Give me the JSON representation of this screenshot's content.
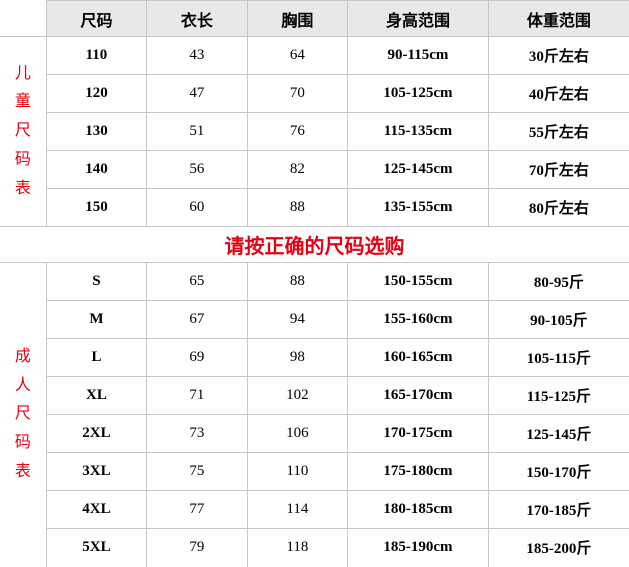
{
  "colors": {
    "accent_red": "#e60012",
    "header_bg": "#e8e8e8",
    "border": "#c7c7c7",
    "text": "#000000",
    "background": "#ffffff"
  },
  "columns": [
    "尺码",
    "衣长",
    "胸围",
    "身高范围",
    "体重范围"
  ],
  "kids_label": "儿童尺码表",
  "adult_label": "成人尺码表",
  "notice": "请按正确的尺码选购",
  "kids_rows": [
    {
      "size": "110",
      "length": "43",
      "bust": "64",
      "height": "90-115cm",
      "weight": "30斤左右"
    },
    {
      "size": "120",
      "length": "47",
      "bust": "70",
      "height": "105-125cm",
      "weight": "40斤左右"
    },
    {
      "size": "130",
      "length": "51",
      "bust": "76",
      "height": "115-135cm",
      "weight": "55斤左右"
    },
    {
      "size": "140",
      "length": "56",
      "bust": "82",
      "height": "125-145cm",
      "weight": "70斤左右"
    },
    {
      "size": "150",
      "length": "60",
      "bust": "88",
      "height": "135-155cm",
      "weight": "80斤左右"
    }
  ],
  "adult_rows": [
    {
      "size": "S",
      "length": "65",
      "bust": "88",
      "height": "150-155cm",
      "weight": "80-95斤"
    },
    {
      "size": "M",
      "length": "67",
      "bust": "94",
      "height": "155-160cm",
      "weight": "90-105斤"
    },
    {
      "size": "L",
      "length": "69",
      "bust": "98",
      "height": "160-165cm",
      "weight": "105-115斤"
    },
    {
      "size": "XL",
      "length": "71",
      "bust": "102",
      "height": "165-170cm",
      "weight": "115-125斤"
    },
    {
      "size": "2XL",
      "length": "73",
      "bust": "106",
      "height": "170-175cm",
      "weight": "125-145斤"
    },
    {
      "size": "3XL",
      "length": "75",
      "bust": "110",
      "height": "175-180cm",
      "weight": "150-170斤"
    },
    {
      "size": "4XL",
      "length": "77",
      "bust": "114",
      "height": "180-185cm",
      "weight": "170-185斤"
    },
    {
      "size": "5XL",
      "length": "79",
      "bust": "118",
      "height": "185-190cm",
      "weight": "185-200斤"
    }
  ]
}
